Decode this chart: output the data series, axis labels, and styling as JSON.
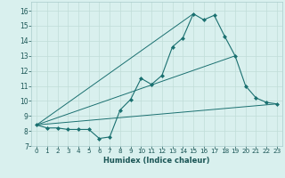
{
  "xlabel": "Humidex (Indice chaleur)",
  "background_color": "#d9f0ee",
  "grid_color": "#c0ddd8",
  "line_color": "#1a7070",
  "xlim": [
    -0.5,
    23.5
  ],
  "ylim": [
    7.0,
    16.6
  ],
  "xticks": [
    0,
    1,
    2,
    3,
    4,
    5,
    6,
    7,
    8,
    9,
    10,
    11,
    12,
    13,
    14,
    15,
    16,
    17,
    18,
    19,
    20,
    21,
    22,
    23
  ],
  "yticks": [
    7,
    8,
    9,
    10,
    11,
    12,
    13,
    14,
    15,
    16
  ],
  "line1_x": [
    0,
    1,
    2,
    3,
    4,
    5,
    6,
    7,
    8,
    9,
    10,
    11,
    12,
    13,
    14,
    15,
    16,
    17,
    18,
    19,
    20,
    21,
    22,
    23
  ],
  "line1_y": [
    8.4,
    8.2,
    8.2,
    8.1,
    8.1,
    8.1,
    7.5,
    7.6,
    9.4,
    10.1,
    11.5,
    11.1,
    11.7,
    13.6,
    14.2,
    15.8,
    15.4,
    15.7,
    14.3,
    13.0,
    11.0,
    10.2,
    9.9,
    9.8
  ],
  "line2_x": [
    0,
    23
  ],
  "line2_y": [
    8.4,
    9.8
  ],
  "line3_x": [
    0,
    19
  ],
  "line3_y": [
    8.4,
    13.0
  ],
  "line4_x": [
    0,
    15
  ],
  "line4_y": [
    8.4,
    15.8
  ],
  "xlabel_fontsize": 6.0,
  "tick_fontsize": 5.2,
  "ytick_fontsize": 5.5
}
